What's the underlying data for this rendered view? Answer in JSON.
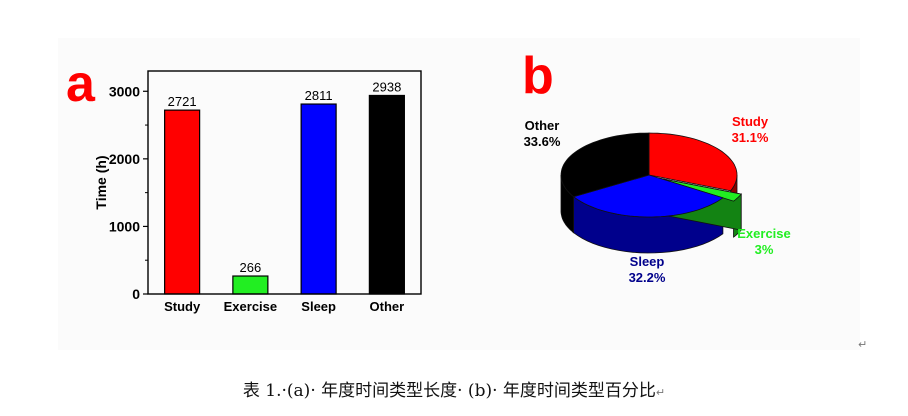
{
  "panels": {
    "a": "a",
    "b": "b"
  },
  "caption": "表 1.·(a)· 年度时间类型长度· (b)· 年度时间类型百分比",
  "return_mark": "↵",
  "chart_data": [
    {
      "type": "bar",
      "categories": [
        "Study",
        "Exercise",
        "Sleep",
        "Other"
      ],
      "values": [
        2721,
        266,
        2811,
        2938
      ],
      "data_labels": [
        "2721",
        "266",
        "2811",
        "2938"
      ],
      "colors": [
        "#ff0000",
        "#22ee22",
        "#0000ff",
        "#000000"
      ],
      "ylabel": "Time (h)",
      "ylim": [
        0,
        3300
      ],
      "yticks": [
        0,
        1000,
        2000,
        3000
      ]
    },
    {
      "type": "pie",
      "slices": [
        {
          "name": "Study",
          "percent": 31.1,
          "label": "31.1%",
          "color": "#ff0000",
          "label_color": "#ff0000"
        },
        {
          "name": "Exercise",
          "percent": 3,
          "label": "3%",
          "color": "#22ee22",
          "label_color": "#22ee22"
        },
        {
          "name": "Sleep",
          "percent": 32.2,
          "label": "32.2%",
          "color": "#0000ff",
          "label_color": "#00008b"
        },
        {
          "name": "Other",
          "percent": 33.6,
          "label": "33.6%",
          "color": "#000000",
          "label_color": "#000000"
        }
      ],
      "exploded": "Exercise",
      "style": "3d"
    }
  ]
}
